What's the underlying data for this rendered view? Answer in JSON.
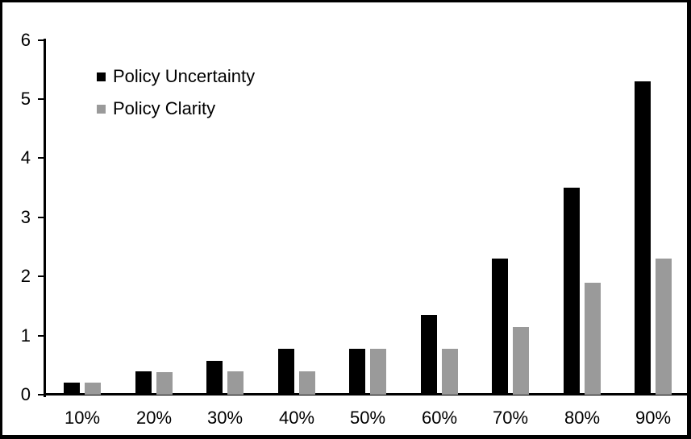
{
  "chart_data": {
    "type": "bar",
    "title": "",
    "xlabel": "",
    "ylabel": "",
    "categories": [
      "10%",
      "20%",
      "30%",
      "40%",
      "50%",
      "60%",
      "70%",
      "80%",
      "90%"
    ],
    "series": [
      {
        "name": "Policy Uncertainty",
        "color": "#000000",
        "values": [
          0.2,
          0.4,
          0.57,
          0.77,
          0.78,
          1.35,
          2.3,
          3.5,
          5.3
        ]
      },
      {
        "name": "Policy Clarity",
        "color": "#9a9a9a",
        "values": [
          0.2,
          0.38,
          0.39,
          0.39,
          0.77,
          0.78,
          1.15,
          1.9,
          2.3
        ]
      }
    ],
    "ylim": [
      0,
      6
    ],
    "yticks": [
      0,
      1,
      2,
      3,
      4,
      5,
      6
    ],
    "grid": false,
    "legend_position": "top-left-inside",
    "frame_color": "#000000",
    "background_color": "#ffffff"
  }
}
